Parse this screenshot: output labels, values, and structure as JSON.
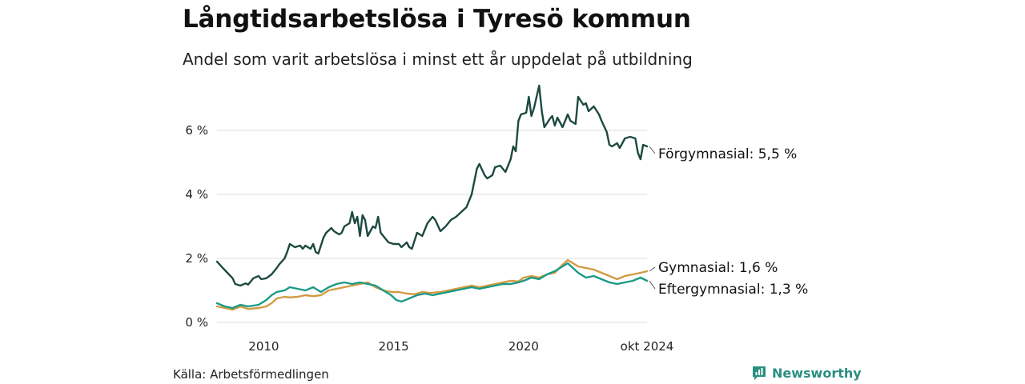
{
  "header": {
    "title": "Långtidsarbetslösa i Tyresö kommun",
    "subtitle": "Andel som varit arbetslösa i minst ett år uppdelat på utbildning"
  },
  "footer": {
    "source": "Källa: Arbetsförmedlingen",
    "brand": "Newsworthy"
  },
  "colors": {
    "forgymnasial": "#1d4a40",
    "gymnasial": "#d19b42",
    "eftergymnasial": "#1a9a86",
    "grid": "#dcdcdc"
  },
  "chart_data": {
    "type": "line",
    "title": "Långtidsarbetslösa i Tyresö kommun",
    "subtitle": "Andel som varit arbetslösa i minst ett år uppdelat på utbildning",
    "xlabel": "",
    "ylabel": "",
    "xlim": [
      2008.2,
      2024.75
    ],
    "ylim": [
      0,
      7.5
    ],
    "x_ticks": [
      {
        "value": 2010,
        "label": "2010"
      },
      {
        "value": 2015,
        "label": "2015"
      },
      {
        "value": 2020,
        "label": "2020"
      },
      {
        "value": 2024.75,
        "label": "okt 2024"
      }
    ],
    "y_ticks": [
      {
        "value": 0,
        "label": "0 %"
      },
      {
        "value": 2,
        "label": "2 %"
      },
      {
        "value": 4,
        "label": "4 %"
      },
      {
        "value": 6,
        "label": "6 %"
      }
    ],
    "grid": true,
    "series": [
      {
        "key": "forgymnasial",
        "name": "Förgymnasial",
        "end_label": "Förgymnasial: 5,5 %",
        "color": "#1d4a40",
        "points": [
          [
            2008.2,
            1.9
          ],
          [
            2008.4,
            1.72
          ],
          [
            2008.6,
            1.55
          ],
          [
            2008.8,
            1.38
          ],
          [
            2008.9,
            1.2
          ],
          [
            2009.1,
            1.15
          ],
          [
            2009.3,
            1.22
          ],
          [
            2009.4,
            1.18
          ],
          [
            2009.6,
            1.38
          ],
          [
            2009.8,
            1.45
          ],
          [
            2009.9,
            1.35
          ],
          [
            2010.1,
            1.38
          ],
          [
            2010.3,
            1.5
          ],
          [
            2010.5,
            1.7
          ],
          [
            2010.6,
            1.82
          ],
          [
            2010.8,
            2.0
          ],
          [
            2010.9,
            2.2
          ],
          [
            2011.0,
            2.45
          ],
          [
            2011.2,
            2.35
          ],
          [
            2011.4,
            2.4
          ],
          [
            2011.5,
            2.3
          ],
          [
            2011.6,
            2.4
          ],
          [
            2011.8,
            2.3
          ],
          [
            2011.9,
            2.45
          ],
          [
            2012.0,
            2.2
          ],
          [
            2012.1,
            2.15
          ],
          [
            2012.3,
            2.65
          ],
          [
            2012.4,
            2.8
          ],
          [
            2012.6,
            2.95
          ],
          [
            2012.7,
            2.85
          ],
          [
            2012.9,
            2.75
          ],
          [
            2013.0,
            2.8
          ],
          [
            2013.1,
            3.0
          ],
          [
            2013.3,
            3.1
          ],
          [
            2013.4,
            3.45
          ],
          [
            2013.5,
            3.1
          ],
          [
            2013.6,
            3.3
          ],
          [
            2013.7,
            2.7
          ],
          [
            2013.8,
            3.35
          ],
          [
            2013.9,
            3.2
          ],
          [
            2014.0,
            2.7
          ],
          [
            2014.2,
            3.0
          ],
          [
            2014.3,
            2.95
          ],
          [
            2014.4,
            3.3
          ],
          [
            2014.5,
            2.8
          ],
          [
            2014.7,
            2.6
          ],
          [
            2014.8,
            2.5
          ],
          [
            2015.0,
            2.45
          ],
          [
            2015.2,
            2.45
          ],
          [
            2015.3,
            2.35
          ],
          [
            2015.5,
            2.5
          ],
          [
            2015.6,
            2.35
          ],
          [
            2015.7,
            2.3
          ],
          [
            2015.9,
            2.8
          ],
          [
            2016.1,
            2.7
          ],
          [
            2016.3,
            3.1
          ],
          [
            2016.5,
            3.3
          ],
          [
            2016.6,
            3.2
          ],
          [
            2016.8,
            2.85
          ],
          [
            2017.0,
            3.0
          ],
          [
            2017.2,
            3.2
          ],
          [
            2017.4,
            3.3
          ],
          [
            2017.6,
            3.45
          ],
          [
            2017.8,
            3.6
          ],
          [
            2018.0,
            4.0
          ],
          [
            2018.2,
            4.8
          ],
          [
            2018.3,
            4.95
          ],
          [
            2018.5,
            4.6
          ],
          [
            2018.6,
            4.5
          ],
          [
            2018.8,
            4.6
          ],
          [
            2018.9,
            4.85
          ],
          [
            2019.1,
            4.9
          ],
          [
            2019.3,
            4.7
          ],
          [
            2019.5,
            5.1
          ],
          [
            2019.6,
            5.5
          ],
          [
            2019.7,
            5.35
          ],
          [
            2019.8,
            6.3
          ],
          [
            2019.9,
            6.5
          ],
          [
            2020.1,
            6.55
          ],
          [
            2020.2,
            7.05
          ],
          [
            2020.3,
            6.45
          ],
          [
            2020.4,
            6.7
          ],
          [
            2020.6,
            7.4
          ],
          [
            2020.7,
            6.6
          ],
          [
            2020.8,
            6.1
          ],
          [
            2021.0,
            6.35
          ],
          [
            2021.1,
            6.45
          ],
          [
            2021.2,
            6.15
          ],
          [
            2021.3,
            6.4
          ],
          [
            2021.5,
            6.1
          ],
          [
            2021.7,
            6.5
          ],
          [
            2021.8,
            6.3
          ],
          [
            2022.0,
            6.2
          ],
          [
            2022.1,
            7.05
          ],
          [
            2022.3,
            6.8
          ],
          [
            2022.4,
            6.85
          ],
          [
            2022.5,
            6.6
          ],
          [
            2022.7,
            6.75
          ],
          [
            2022.9,
            6.5
          ],
          [
            2023.0,
            6.3
          ],
          [
            2023.2,
            5.95
          ],
          [
            2023.3,
            5.55
          ],
          [
            2023.4,
            5.5
          ],
          [
            2023.6,
            5.6
          ],
          [
            2023.7,
            5.45
          ],
          [
            2023.9,
            5.75
          ],
          [
            2024.1,
            5.8
          ],
          [
            2024.3,
            5.75
          ],
          [
            2024.4,
            5.3
          ],
          [
            2024.5,
            5.1
          ],
          [
            2024.6,
            5.55
          ],
          [
            2024.75,
            5.5
          ]
        ]
      },
      {
        "key": "gymnasial",
        "name": "Gymnasial",
        "end_label": "Gymnasial: 1,6 %",
        "color": "#d19b42",
        "points": [
          [
            2008.2,
            0.5
          ],
          [
            2008.5,
            0.45
          ],
          [
            2008.8,
            0.4
          ],
          [
            2009.1,
            0.5
          ],
          [
            2009.4,
            0.42
          ],
          [
            2009.8,
            0.45
          ],
          [
            2010.1,
            0.5
          ],
          [
            2010.3,
            0.6
          ],
          [
            2010.5,
            0.75
          ],
          [
            2010.8,
            0.8
          ],
          [
            2011.0,
            0.78
          ],
          [
            2011.3,
            0.8
          ],
          [
            2011.6,
            0.85
          ],
          [
            2011.9,
            0.82
          ],
          [
            2012.2,
            0.85
          ],
          [
            2012.5,
            1.0
          ],
          [
            2012.8,
            1.05
          ],
          [
            2013.1,
            1.1
          ],
          [
            2013.4,
            1.15
          ],
          [
            2013.7,
            1.2
          ],
          [
            2014.0,
            1.25
          ],
          [
            2014.3,
            1.1
          ],
          [
            2014.6,
            1.0
          ],
          [
            2014.9,
            0.95
          ],
          [
            2015.2,
            0.95
          ],
          [
            2015.5,
            0.9
          ],
          [
            2015.8,
            0.88
          ],
          [
            2016.1,
            0.95
          ],
          [
            2016.4,
            0.92
          ],
          [
            2016.8,
            0.95
          ],
          [
            2017.1,
            1.0
          ],
          [
            2017.4,
            1.05
          ],
          [
            2017.7,
            1.1
          ],
          [
            2018.0,
            1.15
          ],
          [
            2018.3,
            1.1
          ],
          [
            2018.6,
            1.15
          ],
          [
            2018.9,
            1.2
          ],
          [
            2019.2,
            1.25
          ],
          [
            2019.5,
            1.3
          ],
          [
            2019.8,
            1.28
          ],
          [
            2020.0,
            1.4
          ],
          [
            2020.3,
            1.45
          ],
          [
            2020.6,
            1.4
          ],
          [
            2020.9,
            1.5
          ],
          [
            2021.2,
            1.55
          ],
          [
            2021.5,
            1.8
          ],
          [
            2021.7,
            1.95
          ],
          [
            2021.9,
            1.85
          ],
          [
            2022.1,
            1.75
          ],
          [
            2022.4,
            1.7
          ],
          [
            2022.7,
            1.65
          ],
          [
            2023.0,
            1.55
          ],
          [
            2023.3,
            1.45
          ],
          [
            2023.6,
            1.35
          ],
          [
            2023.9,
            1.45
          ],
          [
            2024.2,
            1.5
          ],
          [
            2024.5,
            1.55
          ],
          [
            2024.75,
            1.6
          ]
        ]
      },
      {
        "key": "eftergymnasial",
        "name": "Eftergymnasial",
        "end_label": "Eftergymnasial: 1,3 %",
        "color": "#1a9a86",
        "points": [
          [
            2008.2,
            0.6
          ],
          [
            2008.5,
            0.5
          ],
          [
            2008.8,
            0.45
          ],
          [
            2009.1,
            0.55
          ],
          [
            2009.4,
            0.5
          ],
          [
            2009.8,
            0.55
          ],
          [
            2010.1,
            0.7
          ],
          [
            2010.3,
            0.85
          ],
          [
            2010.5,
            0.95
          ],
          [
            2010.8,
            1.0
          ],
          [
            2011.0,
            1.1
          ],
          [
            2011.3,
            1.05
          ],
          [
            2011.6,
            1.0
          ],
          [
            2011.9,
            1.1
          ],
          [
            2012.2,
            0.95
          ],
          [
            2012.5,
            1.1
          ],
          [
            2012.8,
            1.2
          ],
          [
            2013.1,
            1.25
          ],
          [
            2013.4,
            1.2
          ],
          [
            2013.7,
            1.25
          ],
          [
            2014.0,
            1.2
          ],
          [
            2014.3,
            1.15
          ],
          [
            2014.6,
            1.0
          ],
          [
            2014.9,
            0.85
          ],
          [
            2015.1,
            0.7
          ],
          [
            2015.3,
            0.65
          ],
          [
            2015.6,
            0.75
          ],
          [
            2015.9,
            0.85
          ],
          [
            2016.2,
            0.9
          ],
          [
            2016.5,
            0.85
          ],
          [
            2016.8,
            0.9
          ],
          [
            2017.1,
            0.95
          ],
          [
            2017.4,
            1.0
          ],
          [
            2017.7,
            1.05
          ],
          [
            2018.0,
            1.1
          ],
          [
            2018.3,
            1.05
          ],
          [
            2018.6,
            1.1
          ],
          [
            2018.9,
            1.15
          ],
          [
            2019.2,
            1.2
          ],
          [
            2019.5,
            1.2
          ],
          [
            2019.8,
            1.25
          ],
          [
            2020.0,
            1.3
          ],
          [
            2020.3,
            1.4
          ],
          [
            2020.6,
            1.35
          ],
          [
            2020.9,
            1.5
          ],
          [
            2021.2,
            1.6
          ],
          [
            2021.5,
            1.75
          ],
          [
            2021.7,
            1.85
          ],
          [
            2021.9,
            1.7
          ],
          [
            2022.1,
            1.55
          ],
          [
            2022.4,
            1.4
          ],
          [
            2022.7,
            1.45
          ],
          [
            2023.0,
            1.35
          ],
          [
            2023.3,
            1.25
          ],
          [
            2023.6,
            1.2
          ],
          [
            2023.9,
            1.25
          ],
          [
            2024.2,
            1.3
          ],
          [
            2024.5,
            1.4
          ],
          [
            2024.75,
            1.3
          ]
        ]
      }
    ]
  }
}
